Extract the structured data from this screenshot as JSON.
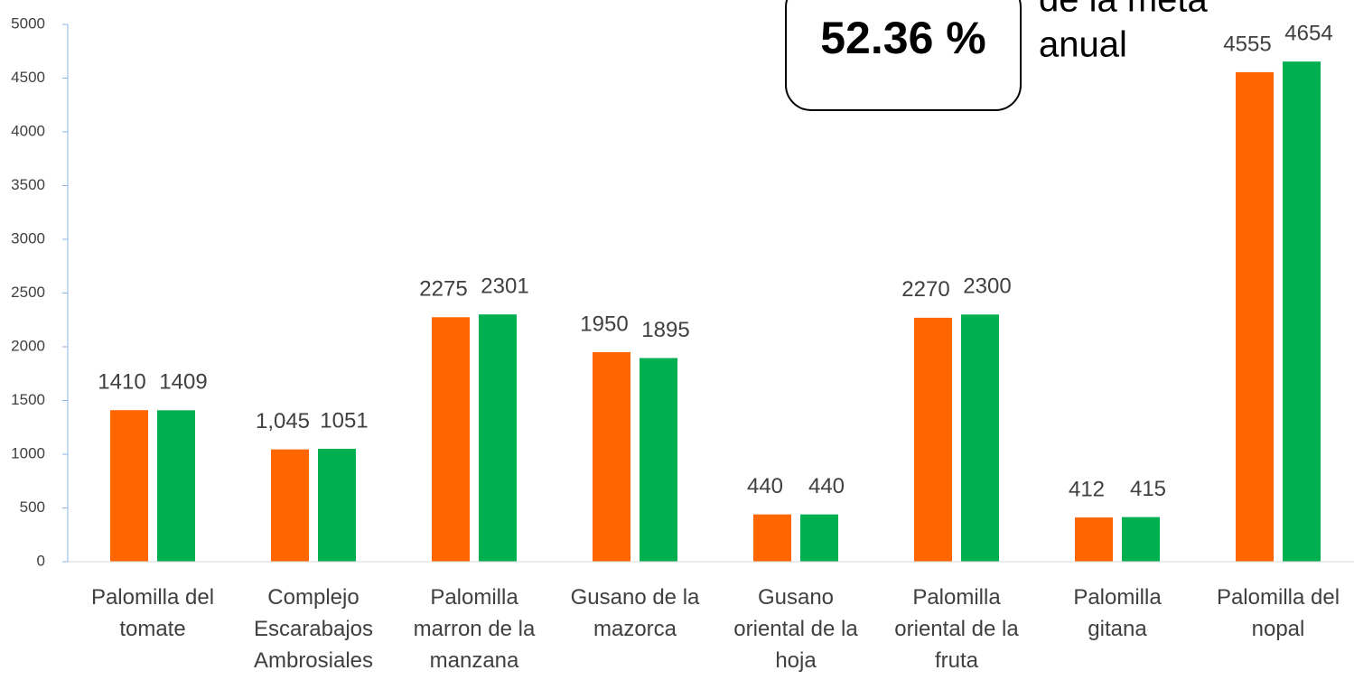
{
  "chart_data": {
    "type": "bar",
    "categories": [
      "Palomilla del\ntomate",
      "Complejo\nEscarabajos\nAmbrosiales",
      "Palomilla\nmarron de la\nmanzana",
      "Gusano de la\nmazorca",
      "Gusano\noriental de la\nhoja",
      "Palomilla\noriental de la\nfruta",
      "Palomilla\ngitana",
      "Palomilla del\nnopal"
    ],
    "series": [
      {
        "color": "#ff6600",
        "values": [
          1410,
          1045,
          2275,
          1950,
          440,
          2270,
          412,
          4555
        ],
        "value_labels": [
          "1410",
          "1,045",
          "2275",
          "1950",
          "440",
          "2270",
          "412",
          "4555"
        ]
      },
      {
        "color": "#00b050",
        "values": [
          1409,
          1051,
          2301,
          1895,
          440,
          2300,
          415,
          4654
        ],
        "value_labels": [
          "1409",
          "1051",
          "2301",
          "1895",
          "440",
          "2300",
          "415",
          "4654"
        ]
      }
    ],
    "ylim": [
      0,
      5000
    ],
    "yticks": [
      0,
      500,
      1000,
      1500,
      2000,
      2500,
      3000,
      3500,
      4000,
      4500,
      5000
    ],
    "annotations": [
      "52.36 %",
      "de la meta",
      "anual"
    ]
  }
}
